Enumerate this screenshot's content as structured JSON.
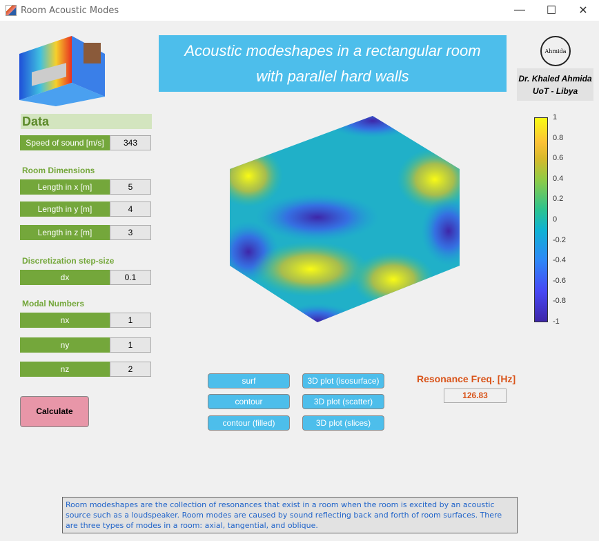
{
  "window": {
    "title": "Room Acoustic Modes",
    "minimize": "—",
    "maximize": "☐",
    "close": "✕"
  },
  "banner": {
    "line1": "Acoustic modeshapes in a rectangular room",
    "line2": "with parallel hard walls"
  },
  "author": {
    "logo_text": "Ahmida",
    "name": "Dr. Khaled Ahmida",
    "affiliation": "UoT - Libya"
  },
  "data": {
    "header": "Data",
    "speed_label": "Speed of sound [m/s]",
    "speed_value": "343"
  },
  "room": {
    "header": "Room Dimensions",
    "x_label": "Length in x [m]",
    "x_value": "5",
    "y_label": "Length in y [m]",
    "y_value": "4",
    "z_label": "Length in z [m]",
    "z_value": "3"
  },
  "disc": {
    "header": "Discretization step-size",
    "dx_label": "dx",
    "dx_value": "0.1"
  },
  "modal": {
    "header": "Modal Numbers",
    "nx_label": "nx",
    "nx_value": "1",
    "ny_label": "ny",
    "ny_value": "1",
    "nz_label": "nz",
    "nz_value": "2"
  },
  "calculate": "Calculate",
  "plots": {
    "surf": "surf",
    "contour": "contour",
    "contour_filled": "contour (filled)",
    "iso": "3D plot (isosurface)",
    "scatter": "3D plot (scatter)",
    "slices": "3D plot (slices)"
  },
  "resonance": {
    "label": "Resonance Freq. [Hz]",
    "value": "126.83"
  },
  "colorbar": {
    "ticks": [
      "1",
      "0.8",
      "0.6",
      "0.4",
      "0.2",
      "0",
      "-0.2",
      "-0.4",
      "-0.6",
      "-0.8",
      "-1"
    ]
  },
  "description": "Room modeshapes are the collection of resonances that exist in a room when the room is excited by an acoustic source such as a loudspeaker. Room modes are caused by sound reflecting back and forth of room surfaces. There are three types of modes in a room: axial, tangential, and oblique."
}
